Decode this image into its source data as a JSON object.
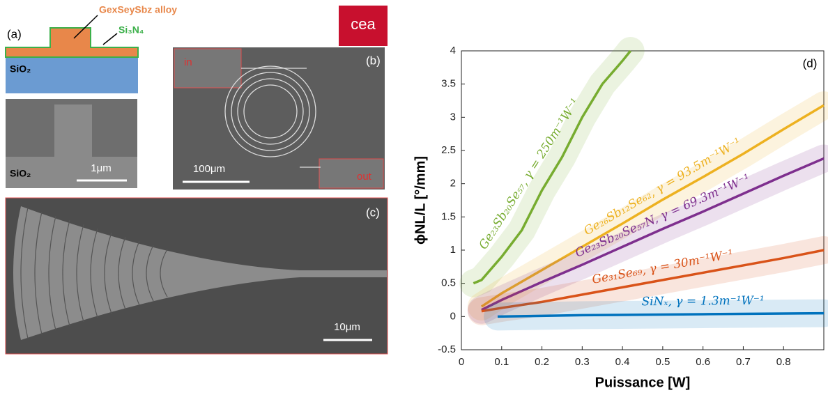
{
  "panels": {
    "a": {
      "label": "(a)",
      "alloy": "GexSeySbz alloy",
      "cladding": "Si₃N₄",
      "substrate": "SiO₂",
      "sem_substrate": "SiO₂",
      "scale": "1μm"
    },
    "logo": "cea",
    "b": {
      "label": "(b)",
      "input": "in",
      "output": "out",
      "scale": "100μm"
    },
    "c": {
      "label": "(c)",
      "scale": "10μm"
    }
  },
  "chart_data": {
    "type": "line",
    "panel_label": "(d)",
    "xlabel": "Puissance [W]",
    "ylabel": "ϕNL/L [°/mm]",
    "xlim": [
      0,
      0.9
    ],
    "ylim": [
      -0.5,
      4
    ],
    "xticks": [
      0,
      0.1,
      0.2,
      0.3,
      0.4,
      0.5,
      0.6,
      0.7,
      0.8
    ],
    "yticks": [
      -0.5,
      0,
      0.5,
      1,
      1.5,
      2,
      2.5,
      3,
      3.5,
      4
    ],
    "series": [
      {
        "name": "Ge₂₃Sb₂₀Se₅₇, γ = 250m⁻¹W⁻¹",
        "color": "#77ac30",
        "x": [
          0.03,
          0.05,
          0.1,
          0.15,
          0.2,
          0.25,
          0.3,
          0.35,
          0.4,
          0.42
        ],
        "values": [
          0.5,
          0.55,
          0.9,
          1.3,
          1.9,
          2.4,
          3.0,
          3.5,
          3.85,
          4.0
        ]
      },
      {
        "name": "Ge₂₆Sb₁₂Se₆₂, γ = 93.5m⁻¹W⁻¹",
        "color": "#edb120",
        "x": [
          0.05,
          0.1,
          0.2,
          0.3,
          0.4,
          0.5,
          0.6,
          0.7,
          0.8,
          0.9
        ],
        "values": [
          0.15,
          0.35,
          0.7,
          1.05,
          1.4,
          1.76,
          2.1,
          2.45,
          2.82,
          3.18
        ]
      },
      {
        "name": "Ge₂₃Sb₂₀Se₅₇N, γ = 69.3m⁻¹W⁻¹",
        "color": "#7e2f8e",
        "x": [
          0.05,
          0.1,
          0.2,
          0.3,
          0.4,
          0.5,
          0.6,
          0.7,
          0.8,
          0.9
        ],
        "values": [
          0.1,
          0.25,
          0.52,
          0.78,
          1.05,
          1.32,
          1.58,
          1.85,
          2.12,
          2.38
        ]
      },
      {
        "name": "Ge₃₁Se₆₉, γ = 30m⁻¹W⁻¹",
        "color": "#d95319",
        "x": [
          0.05,
          0.1,
          0.2,
          0.3,
          0.4,
          0.5,
          0.6,
          0.7,
          0.8,
          0.9
        ],
        "values": [
          0.08,
          0.13,
          0.22,
          0.33,
          0.44,
          0.55,
          0.66,
          0.77,
          0.88,
          1.0
        ]
      },
      {
        "name": "SiNₓ, γ = 1.3m⁻¹W⁻¹",
        "color": "#0072bd",
        "x": [
          0.09,
          0.3,
          0.6,
          0.9
        ],
        "values": [
          0.0,
          0.02,
          0.035,
          0.05
        ]
      }
    ]
  }
}
